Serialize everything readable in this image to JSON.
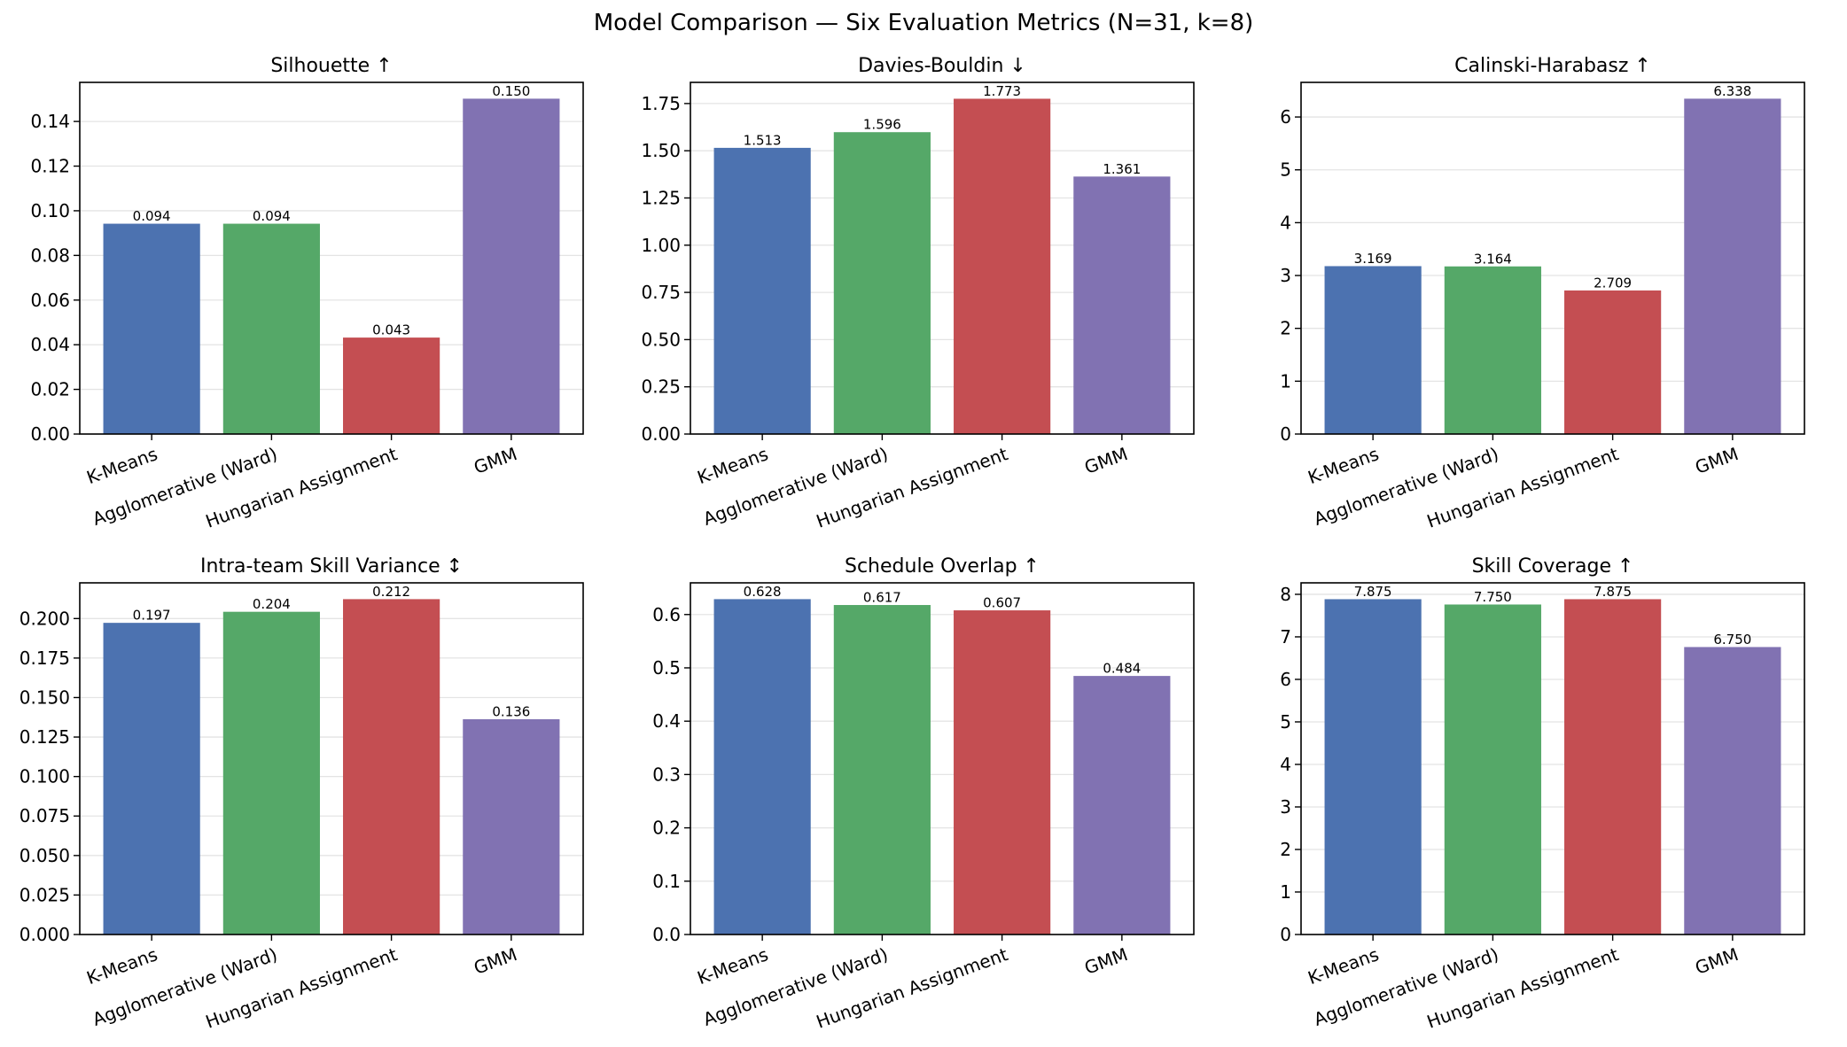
{
  "figure_title": "Model Comparison — Six Evaluation Metrics (N=31, k=8)",
  "colors": {
    "K-Means": "#4c72b0",
    "Agglomerative (Ward)": "#55a868",
    "Hungarian Assignment": "#c44e52",
    "GMM": "#8172b2"
  },
  "chart_data": [
    {
      "type": "bar",
      "title": "Silhouette ↑",
      "categories": [
        "K-Means",
        "Agglomerative (Ward)",
        "Hungarian Assignment",
        "GMM"
      ],
      "values": [
        0.094,
        0.094,
        0.043,
        0.15
      ],
      "value_labels": [
        "0.094",
        "0.094",
        "0.043",
        "0.150"
      ],
      "ylim": [
        0,
        0.1575
      ],
      "yticks": [
        0.0,
        0.02,
        0.04,
        0.06,
        0.08,
        0.1,
        0.12,
        0.14
      ],
      "ytick_labels": [
        "0.00",
        "0.02",
        "0.04",
        "0.06",
        "0.08",
        "0.10",
        "0.12",
        "0.14"
      ],
      "grid": true
    },
    {
      "type": "bar",
      "title": "Davies-Bouldin ↓",
      "categories": [
        "K-Means",
        "Agglomerative (Ward)",
        "Hungarian Assignment",
        "GMM"
      ],
      "values": [
        1.513,
        1.596,
        1.773,
        1.361
      ],
      "value_labels": [
        "1.513",
        "1.596",
        "1.773",
        "1.361"
      ],
      "ylim": [
        0,
        1.862
      ],
      "yticks": [
        0.0,
        0.25,
        0.5,
        0.75,
        1.0,
        1.25,
        1.5,
        1.75
      ],
      "ytick_labels": [
        "0.00",
        "0.25",
        "0.50",
        "0.75",
        "1.00",
        "1.25",
        "1.50",
        "1.75"
      ],
      "grid": true
    },
    {
      "type": "bar",
      "title": "Calinski-Harabasz ↑",
      "categories": [
        "K-Means",
        "Agglomerative (Ward)",
        "Hungarian Assignment",
        "GMM"
      ],
      "values": [
        3.169,
        3.164,
        2.709,
        6.338
      ],
      "value_labels": [
        "3.169",
        "3.164",
        "2.709",
        "6.338"
      ],
      "ylim": [
        0,
        6.655
      ],
      "yticks": [
        0,
        1,
        2,
        3,
        4,
        5,
        6
      ],
      "ytick_labels": [
        "0",
        "1",
        "2",
        "3",
        "4",
        "5",
        "6"
      ],
      "grid": true
    },
    {
      "type": "bar",
      "title": "Intra-team Skill Variance ↕",
      "categories": [
        "K-Means",
        "Agglomerative (Ward)",
        "Hungarian Assignment",
        "GMM"
      ],
      "values": [
        0.197,
        0.204,
        0.212,
        0.136
      ],
      "value_labels": [
        "0.197",
        "0.204",
        "0.212",
        "0.136"
      ],
      "ylim": [
        0,
        0.2226
      ],
      "yticks": [
        0.0,
        0.025,
        0.05,
        0.075,
        0.1,
        0.125,
        0.15,
        0.175,
        0.2
      ],
      "ytick_labels": [
        "0.000",
        "0.025",
        "0.050",
        "0.075",
        "0.100",
        "0.125",
        "0.150",
        "0.175",
        "0.200"
      ],
      "grid": true
    },
    {
      "type": "bar",
      "title": "Schedule Overlap ↑",
      "categories": [
        "K-Means",
        "Agglomerative (Ward)",
        "Hungarian Assignment",
        "GMM"
      ],
      "values": [
        0.628,
        0.617,
        0.607,
        0.484
      ],
      "value_labels": [
        "0.628",
        "0.617",
        "0.607",
        "0.484"
      ],
      "ylim": [
        0,
        0.6594
      ],
      "yticks": [
        0.0,
        0.1,
        0.2,
        0.3,
        0.4,
        0.5,
        0.6
      ],
      "ytick_labels": [
        "0.0",
        "0.1",
        "0.2",
        "0.3",
        "0.4",
        "0.5",
        "0.6"
      ],
      "grid": true
    },
    {
      "type": "bar",
      "title": "Skill Coverage ↑",
      "categories": [
        "K-Means",
        "Agglomerative (Ward)",
        "Hungarian Assignment",
        "GMM"
      ],
      "values": [
        7.875,
        7.75,
        7.875,
        6.75
      ],
      "value_labels": [
        "7.875",
        "7.750",
        "7.875",
        "6.750"
      ],
      "ylim": [
        0,
        8.27
      ],
      "yticks": [
        0,
        1,
        2,
        3,
        4,
        5,
        6,
        7,
        8
      ],
      "ytick_labels": [
        "0",
        "1",
        "2",
        "3",
        "4",
        "5",
        "6",
        "7",
        "8"
      ],
      "grid": true
    }
  ]
}
